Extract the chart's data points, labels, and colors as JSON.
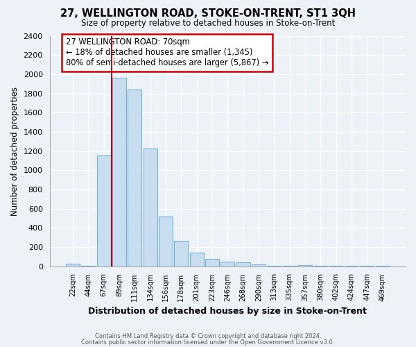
{
  "title": "27, WELLINGTON ROAD, STOKE-ON-TRENT, ST1 3QH",
  "subtitle": "Size of property relative to detached houses in Stoke-on-Trent",
  "xlabel": "Distribution of detached houses by size in Stoke-on-Trent",
  "ylabel": "Number of detached properties",
  "bin_labels": [
    "22sqm",
    "44sqm",
    "67sqm",
    "89sqm",
    "111sqm",
    "134sqm",
    "156sqm",
    "178sqm",
    "201sqm",
    "223sqm",
    "246sqm",
    "268sqm",
    "290sqm",
    "313sqm",
    "335sqm",
    "357sqm",
    "380sqm",
    "402sqm",
    "424sqm",
    "447sqm",
    "469sqm"
  ],
  "bar_values": [
    25,
    2,
    1150,
    1960,
    1840,
    1225,
    520,
    265,
    140,
    75,
    50,
    40,
    15,
    5,
    5,
    10,
    3,
    2,
    1,
    1,
    1
  ],
  "bar_color": "#c8ddf0",
  "bar_edge_color": "#7ab0d4",
  "property_line_x": 2.5,
  "property_line_color": "#cc0000",
  "annotation_text": "27 WELLINGTON ROAD: 70sqm\n← 18% of detached houses are smaller (1,345)\n80% of semi-detached houses are larger (5,867) →",
  "annotation_box_color": "#ffffff",
  "annotation_box_edge_color": "#cc0000",
  "ylim": [
    0,
    2400
  ],
  "yticks": [
    0,
    200,
    400,
    600,
    800,
    1000,
    1200,
    1400,
    1600,
    1800,
    2000,
    2200,
    2400
  ],
  "footer_line1": "Contains HM Land Registry data © Crown copyright and database right 2024.",
  "footer_line2": "Contains public sector information licensed under the Open Government Licence v3.0.",
  "background_color": "#edf2f8",
  "grid_color": "#ffffff"
}
